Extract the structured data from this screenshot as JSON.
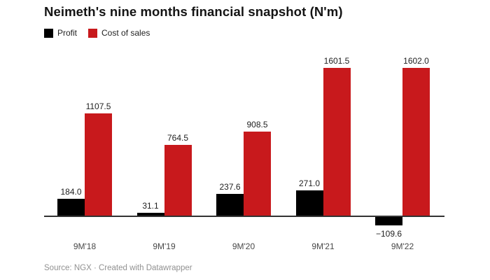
{
  "title": "Neimeth's nine months financial snapshot (N'm)",
  "footer": {
    "source": "Source: NGX · Created with Datawrapper"
  },
  "colors": {
    "profit": "#000000",
    "cost_of_sales": "#c8191c",
    "axis": "#333333",
    "tick_text": "#494949",
    "source_text": "#919191"
  },
  "chart_data": {
    "type": "bar",
    "title": "Neimeth's nine months financial snapshot (N'm)",
    "categories": [
      "9M'18",
      "9M'19",
      "9M'20",
      "9M'21",
      "9M'22"
    ],
    "series": [
      {
        "name": "Profit",
        "color": "#000000",
        "values": [
          184.0,
          31.1,
          237.6,
          271.0,
          -109.6
        ],
        "labels": [
          "184.0",
          "31.1",
          "237.6",
          "271.0",
          "−109.6"
        ]
      },
      {
        "name": "Cost of sales",
        "color": "#c8191c",
        "values": [
          1107.5,
          764.5,
          908.5,
          1601.5,
          1602.0
        ],
        "labels": [
          "1107.5",
          "764.5",
          "908.5",
          "1601.5",
          "1602.0"
        ]
      }
    ],
    "xlabel": "",
    "ylabel": "",
    "ylim": [
      -150,
      1700
    ],
    "grid": false,
    "legend_position": "top-left",
    "value_labels_shown": true
  }
}
